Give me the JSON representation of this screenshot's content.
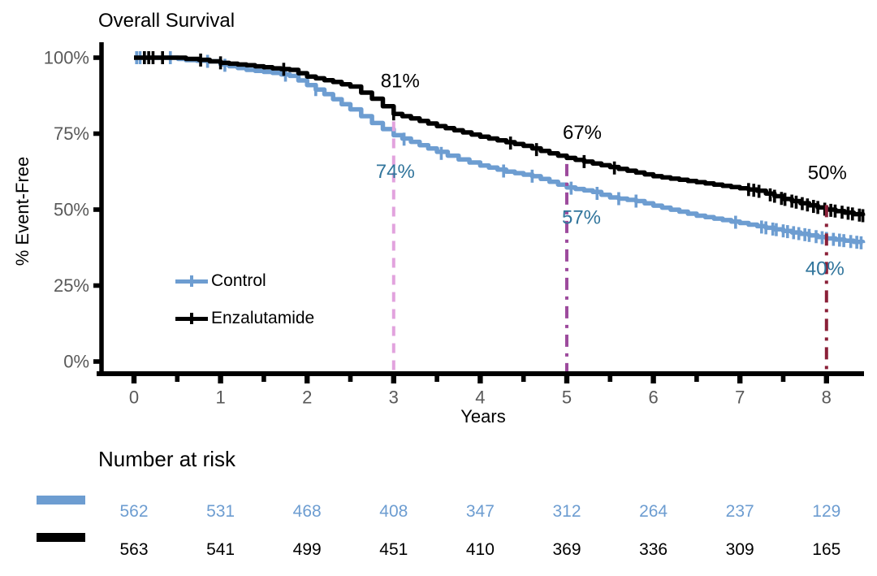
{
  "title": "Overall Survival",
  "axes": {
    "y_label": "% Event-Free",
    "x_label": "Years",
    "tick_color": "#595959",
    "y_ticks": [
      {
        "value": 100,
        "label": "100%"
      },
      {
        "value": 75,
        "label": "75%"
      },
      {
        "value": 50,
        "label": "50%"
      },
      {
        "value": 25,
        "label": "25%"
      },
      {
        "value": 0,
        "label": "0%"
      }
    ],
    "x_ticks": [
      {
        "value": 0,
        "label": "0"
      },
      {
        "value": 1,
        "label": "1"
      },
      {
        "value": 2,
        "label": "2"
      },
      {
        "value": 3,
        "label": "3"
      },
      {
        "value": 4,
        "label": "4"
      },
      {
        "value": 5,
        "label": "5"
      },
      {
        "value": 6,
        "label": "6"
      },
      {
        "value": 7,
        "label": "7"
      },
      {
        "value": 8,
        "label": "8"
      }
    ]
  },
  "legend": {
    "items": [
      {
        "label": "Control",
        "color": "#6D9DD1"
      },
      {
        "label": "Enzalutamide",
        "color": "#000000"
      }
    ]
  },
  "chart_data": {
    "type": "line",
    "subtype": "kaplan-meier-step",
    "title": "Overall Survival",
    "xlabel": "Years",
    "ylabel": "% Event-Free",
    "xlim": [
      0,
      8.45
    ],
    "ylim": [
      0,
      100
    ],
    "grid": false,
    "legend_position": "inside-left",
    "series": [
      {
        "name": "Control",
        "color": "#6D9DD1",
        "points": [
          [
            0,
            100
          ],
          [
            0.42,
            100
          ],
          [
            0.6,
            99.2
          ],
          [
            0.85,
            98.8
          ],
          [
            1,
            97.8
          ],
          [
            1.3,
            96
          ],
          [
            1.6,
            95
          ],
          [
            1.8,
            94
          ],
          [
            2,
            91
          ],
          [
            2.2,
            88
          ],
          [
            2.5,
            83
          ],
          [
            2.75,
            78.5
          ],
          [
            3,
            74.5
          ],
          [
            3.2,
            72.3
          ],
          [
            3.5,
            69
          ],
          [
            3.75,
            66.5
          ],
          [
            4,
            64.5
          ],
          [
            4.3,
            62.5
          ],
          [
            4.6,
            61
          ],
          [
            5,
            57.3
          ],
          [
            5.3,
            55.8
          ],
          [
            5.5,
            54
          ],
          [
            5.8,
            52.8
          ],
          [
            6,
            51.3
          ],
          [
            6.5,
            48
          ],
          [
            7,
            45.6
          ],
          [
            7.3,
            44
          ],
          [
            7.5,
            43
          ],
          [
            8,
            40.5
          ],
          [
            8.42,
            39
          ]
        ],
        "censor_marks": [
          0.03,
          0.07,
          0.12,
          0.42,
          0.85,
          1.05,
          1.75,
          2.1,
          3.12,
          3.55,
          4.27,
          4.6,
          5.05,
          5.35,
          5.6,
          5.8,
          6.95,
          7.25,
          7.3,
          7.38,
          7.42,
          7.5,
          7.55,
          7.62,
          7.68,
          7.75,
          7.8,
          7.88,
          7.95,
          8.0,
          8.08,
          8.15,
          8.2,
          8.28,
          8.35,
          8.4
        ]
      },
      {
        "name": "Enzalutamide",
        "color": "#000000",
        "points": [
          [
            0,
            100
          ],
          [
            0.45,
            100
          ],
          [
            0.6,
            99.6
          ],
          [
            0.75,
            99.3
          ],
          [
            1,
            98.3
          ],
          [
            1.3,
            97.5
          ],
          [
            1.6,
            96.5
          ],
          [
            1.8,
            96
          ],
          [
            2,
            93.8
          ],
          [
            2.3,
            92
          ],
          [
            2.5,
            90.5
          ],
          [
            2.75,
            86.5
          ],
          [
            3,
            81.5
          ],
          [
            3.2,
            80
          ],
          [
            3.5,
            77.5
          ],
          [
            4,
            74
          ],
          [
            4.5,
            71
          ],
          [
            4.8,
            68.5
          ],
          [
            5,
            67
          ],
          [
            5.5,
            64
          ],
          [
            6,
            61
          ],
          [
            6.5,
            59
          ],
          [
            7,
            57
          ],
          [
            7.2,
            56.2
          ],
          [
            7.5,
            53.5
          ],
          [
            8,
            50
          ],
          [
            8.42,
            48
          ]
        ],
        "censor_marks": [
          0.12,
          0.17,
          0.22,
          0.33,
          0.77,
          1.0,
          1.73,
          3.0,
          4.35,
          4.65,
          5.2,
          5.55,
          7.1,
          7.16,
          7.22,
          7.35,
          7.4,
          7.48,
          7.52,
          7.6,
          7.65,
          7.72,
          7.78,
          7.85,
          7.9,
          7.98,
          8.05,
          8.1,
          8.18,
          8.25,
          8.3,
          8.38,
          8.42
        ]
      }
    ],
    "milestones": [
      {
        "year": 3,
        "line": {
          "color": "#E2A3DE",
          "style": "dashed",
          "top_pct": 79
        },
        "labels": [
          {
            "text": "81%",
            "series": "Enzalutamide",
            "color": "#000000",
            "pct_y": 92.3,
            "dx": 8
          },
          {
            "text": "74%",
            "series": "Control",
            "color": "#31759C",
            "pct_y": 62.5,
            "dx": 2
          }
        ]
      },
      {
        "year": 5,
        "line": {
          "color": "#9D4B9D",
          "style": "dashdot",
          "top_pct": 65
        },
        "labels": [
          {
            "text": "67%",
            "series": "Enzalutamide",
            "color": "#000000",
            "pct_y": 75.3,
            "dx": 19
          },
          {
            "text": "57%",
            "series": "Control",
            "color": "#31759C",
            "pct_y": 47.3,
            "dx": 18
          }
        ]
      },
      {
        "year": 8,
        "line": {
          "color": "#8A2038",
          "style": "dashdot",
          "top_pct": 51.5
        },
        "labels": [
          {
            "text": "50%",
            "series": "Enzalutamide",
            "color": "#000000",
            "pct_y": 62,
            "dx": 1
          },
          {
            "text": "40%",
            "series": "Control",
            "color": "#31759C",
            "pct_y": 30.5,
            "dx": -2
          }
        ]
      }
    ]
  },
  "risk_table": {
    "heading": "Number at risk",
    "years": [
      0,
      1,
      2,
      3,
      4,
      5,
      6,
      7,
      8
    ],
    "rows": [
      {
        "name": "Control",
        "color": "#6D9DD1",
        "counts": [
          "562",
          "531",
          "468",
          "408",
          "347",
          "312",
          "264",
          "237",
          "129"
        ]
      },
      {
        "name": "Enzalutamide",
        "color": "#000000",
        "counts": [
          "563",
          "541",
          "499",
          "451",
          "410",
          "369",
          "336",
          "309",
          "165"
        ]
      }
    ]
  }
}
